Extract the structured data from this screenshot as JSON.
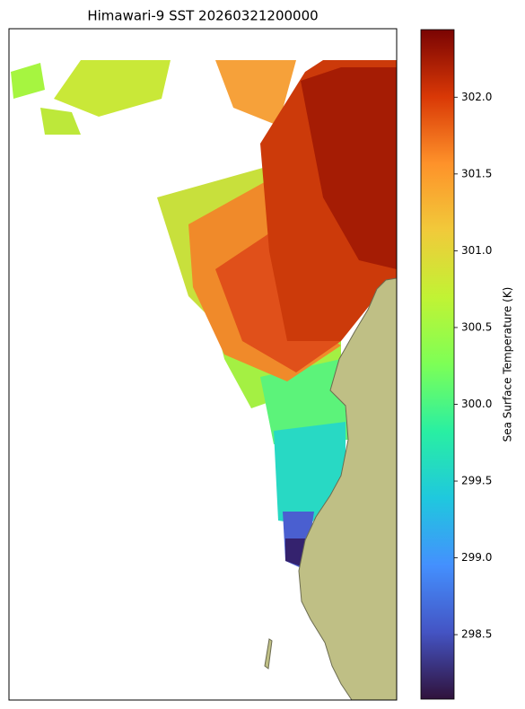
{
  "chart_data": {
    "type": "map",
    "title": "Himawari-9 SST 20260321200000",
    "colorbar": {
      "label": "Sea Surface Temperature (K)",
      "lim": [
        298.08,
        302.44
      ],
      "ticks": [
        298.5,
        {
          "value": 299,
          "label": "299.0"
        },
        299.5,
        {
          "value": 300,
          "label": "300.0"
        },
        300.5,
        {
          "value": 301,
          "label": "301.0"
        },
        301.5,
        {
          "value": 302,
          "label": "302.0"
        }
      ]
    }
  }
}
